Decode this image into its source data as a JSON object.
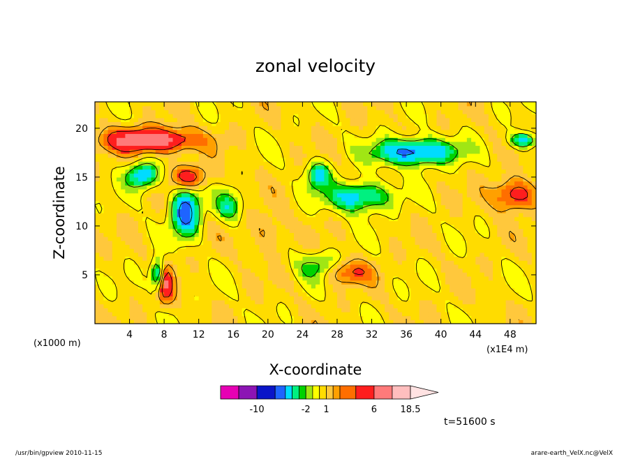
{
  "chart_data": {
    "type": "heatmap",
    "title": "zonal velocity",
    "xlabel": "X-coordinate",
    "ylabel": "Z-coordinate",
    "x_unit_left": "(x1000 m)",
    "x_unit_right": "(x1E4 m)",
    "xlim": [
      0,
      51
    ],
    "ylim": [
      0,
      22.7
    ],
    "xticks": [
      "4",
      "8",
      "12",
      "16",
      "20",
      "24",
      "28",
      "32",
      "36",
      "40",
      "44",
      "48"
    ],
    "xtick_values": [
      4,
      8,
      12,
      16,
      20,
      24,
      28,
      32,
      36,
      40,
      44,
      48
    ],
    "yticks": [
      "5",
      "10",
      "15",
      "20"
    ],
    "ytick_values": [
      5,
      10,
      15,
      20
    ],
    "time_label": "t=51600 s",
    "colorbar": {
      "levels": [
        -14,
        -12,
        -10,
        -8,
        -6,
        -4,
        -3,
        -2,
        -1,
        0,
        1,
        2,
        3,
        4,
        6,
        9,
        12,
        15,
        18.5
      ],
      "colors": [
        "#e600b4",
        "#8c14b4",
        "#0a14c8",
        "#1e64ff",
        "#00dcff",
        "#00f080",
        "#00d200",
        "#a0e614",
        "#ffff00",
        "#ffdc00",
        "#ffc83c",
        "#ffa000",
        "#ff6e00",
        "#ff1e1e",
        "#ff7a7a",
        "#ffbebe"
      ],
      "tick_labels": [
        "-10",
        "-2",
        "1",
        "6",
        "18.5"
      ],
      "tick_values": [
        -10,
        -2,
        1,
        6,
        18.5
      ]
    },
    "features": [
      {
        "x": 6.5,
        "z": 18.8,
        "value": 8,
        "rx": 5,
        "rz": 1.2
      },
      {
        "x": 11,
        "z": 15,
        "value": 5,
        "rx": 2,
        "rz": 1.2
      },
      {
        "x": 8,
        "z": 4.2,
        "value": 6,
        "rx": 1,
        "rz": 2
      },
      {
        "x": 7.3,
        "z": 5,
        "value": -8,
        "rx": 0.8,
        "rz": 1.6
      },
      {
        "x": 5.5,
        "z": 15.2,
        "value": -6,
        "rx": 1.8,
        "rz": 1.3
      },
      {
        "x": 10.5,
        "z": 11.5,
        "value": -8,
        "rx": 1.6,
        "rz": 2.4
      },
      {
        "x": 15.5,
        "z": 12,
        "value": -4,
        "rx": 1.5,
        "rz": 1.5
      },
      {
        "x": 37,
        "z": 17.6,
        "value": -8,
        "rx": 4.5,
        "rz": 1.3
      },
      {
        "x": 49.5,
        "z": 18.8,
        "value": -6,
        "rx": 1.5,
        "rz": 0.8
      },
      {
        "x": 30.5,
        "z": 13,
        "value": -6,
        "rx": 3.5,
        "rz": 1.5
      },
      {
        "x": 25.8,
        "z": 15.2,
        "value": -5,
        "rx": 1.4,
        "rz": 1.4
      },
      {
        "x": 28.8,
        "z": 5.3,
        "value": 4,
        "rx": 3,
        "rz": 1.2
      },
      {
        "x": 48.5,
        "z": 13.2,
        "value": 5,
        "rx": 2.5,
        "rz": 1.6
      },
      {
        "x": 26,
        "z": 5.8,
        "value": -4,
        "rx": 2.5,
        "rz": 1.4
      },
      {
        "x": 20,
        "z": 9.5,
        "value": 2,
        "rx": 2,
        "rz": 2
      }
    ]
  },
  "footer": {
    "left": "/usr/bin/gpview   2010-11-15",
    "right": "arare-earth_VelX.nc@VelX"
  }
}
